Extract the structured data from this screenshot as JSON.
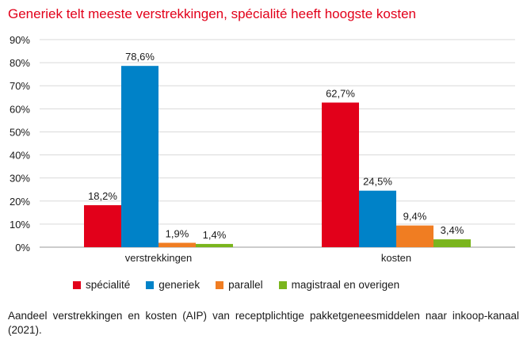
{
  "title": "Generiek telt meeste verstrekkingen, spécialité heeft hoogste kosten",
  "caption": "Aandeel verstrekkingen en kosten (AIP) van receptplichtige pakketgeneesmiddelen naar inkoop-kanaal (2021).",
  "chart_data": {
    "type": "bar",
    "categories": [
      "verstrekkingen",
      "kosten"
    ],
    "series": [
      {
        "name": "spécialité",
        "color": "#e2001a",
        "values": [
          18.2,
          62.7
        ],
        "labels": [
          "18,2%",
          "62,7%"
        ]
      },
      {
        "name": "generiek",
        "color": "#0082c8",
        "values": [
          78.6,
          24.5
        ],
        "labels": [
          "78,6%",
          "24,5%"
        ]
      },
      {
        "name": "parallel",
        "color": "#f07d22",
        "values": [
          1.9,
          9.4
        ],
        "labels": [
          "1,9%",
          "9,4%"
        ]
      },
      {
        "name": "magistraal en overigen",
        "color": "#7ab51d",
        "values": [
          1.4,
          3.4
        ],
        "labels": [
          "1,4%",
          "3,4%"
        ]
      }
    ],
    "yticks": [
      "0%",
      "10%",
      "20%",
      "30%",
      "40%",
      "50%",
      "60%",
      "70%",
      "80%",
      "90%"
    ],
    "ylim": [
      0,
      90
    ],
    "grid": true,
    "legend_position": "bottom"
  }
}
